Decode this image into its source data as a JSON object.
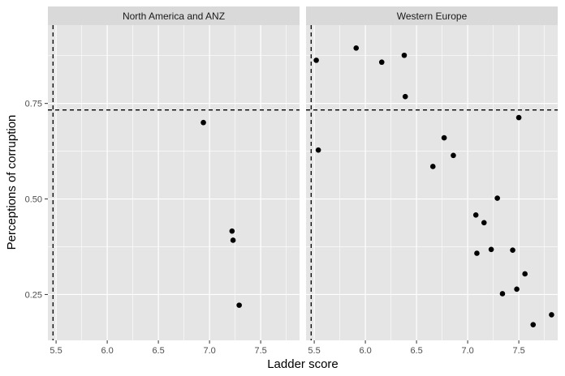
{
  "chart_data": {
    "type": "scatter",
    "xlabel": "Ladder score",
    "ylabel": "Perceptions of corruption",
    "xlim": [
      5.42,
      7.88
    ],
    "ylim": [
      0.13,
      0.955
    ],
    "x_ticks": [
      5.5,
      6.0,
      6.5,
      7.0,
      7.5
    ],
    "x_tick_labels": [
      "5.5",
      "6.0",
      "6.5",
      "7.0",
      "7.5"
    ],
    "y_ticks": [
      0.25,
      0.5,
      0.75
    ],
    "y_tick_labels": [
      "0.25",
      "0.50",
      "0.75"
    ],
    "reference_lines": {
      "x": 5.47,
      "y": 0.733
    },
    "colors": {
      "panel_bg": "#e5e5e5",
      "grid": "#ffffff",
      "strip_bg": "#d9d9d9",
      "point": "#000000",
      "tick": "#4d4d4d"
    },
    "panels": [
      {
        "name": "North America and ANZ",
        "points": [
          {
            "x": 6.94,
            "y": 0.7
          },
          {
            "x": 7.22,
            "y": 0.416
          },
          {
            "x": 7.23,
            "y": 0.392
          },
          {
            "x": 7.29,
            "y": 0.222
          }
        ]
      },
      {
        "name": "Western Europe",
        "points": [
          {
            "x": 5.52,
            "y": 0.863
          },
          {
            "x": 5.54,
            "y": 0.628
          },
          {
            "x": 5.91,
            "y": 0.895
          },
          {
            "x": 6.16,
            "y": 0.858
          },
          {
            "x": 6.38,
            "y": 0.876
          },
          {
            "x": 6.39,
            "y": 0.768
          },
          {
            "x": 6.66,
            "y": 0.585
          },
          {
            "x": 6.77,
            "y": 0.66
          },
          {
            "x": 6.86,
            "y": 0.614
          },
          {
            "x": 7.08,
            "y": 0.458
          },
          {
            "x": 7.09,
            "y": 0.358
          },
          {
            "x": 7.16,
            "y": 0.438
          },
          {
            "x": 7.23,
            "y": 0.368
          },
          {
            "x": 7.29,
            "y": 0.502
          },
          {
            "x": 7.34,
            "y": 0.252
          },
          {
            "x": 7.44,
            "y": 0.366
          },
          {
            "x": 7.48,
            "y": 0.264
          },
          {
            "x": 7.5,
            "y": 0.713
          },
          {
            "x": 7.56,
            "y": 0.304
          },
          {
            "x": 7.64,
            "y": 0.171
          },
          {
            "x": 7.82,
            "y": 0.197
          }
        ]
      }
    ]
  }
}
